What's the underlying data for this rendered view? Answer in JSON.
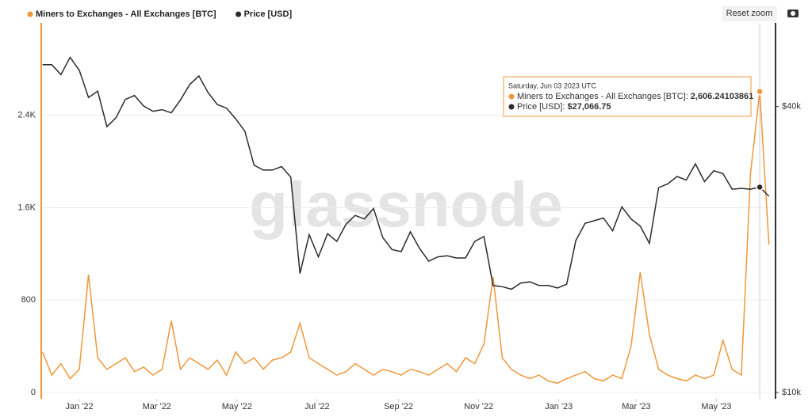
{
  "chart_data": {
    "type": "line",
    "watermark": "glassnode",
    "reset_button": "Reset zoom",
    "x": [
      "2021-12-04",
      "2021-12-11",
      "2021-12-18",
      "2021-12-25",
      "2022-01-01",
      "2022-01-08",
      "2022-01-15",
      "2022-01-22",
      "2022-01-29",
      "2022-02-05",
      "2022-02-12",
      "2022-02-19",
      "2022-02-26",
      "2022-03-05",
      "2022-03-12",
      "2022-03-19",
      "2022-03-26",
      "2022-04-02",
      "2022-04-09",
      "2022-04-16",
      "2022-04-23",
      "2022-04-30",
      "2022-05-07",
      "2022-05-14",
      "2022-05-21",
      "2022-05-28",
      "2022-06-04",
      "2022-06-11",
      "2022-06-18",
      "2022-06-25",
      "2022-07-02",
      "2022-07-09",
      "2022-07-16",
      "2022-07-23",
      "2022-07-30",
      "2022-08-06",
      "2022-08-13",
      "2022-08-20",
      "2022-08-27",
      "2022-09-03",
      "2022-09-10",
      "2022-09-17",
      "2022-09-24",
      "2022-10-01",
      "2022-10-08",
      "2022-10-15",
      "2022-10-22",
      "2022-10-29",
      "2022-11-05",
      "2022-11-12",
      "2022-11-19",
      "2022-11-26",
      "2022-12-03",
      "2022-12-10",
      "2022-12-17",
      "2022-12-24",
      "2022-12-31",
      "2023-01-07",
      "2023-01-14",
      "2023-01-21",
      "2023-01-28",
      "2023-02-04",
      "2023-02-11",
      "2023-02-18",
      "2023-02-25",
      "2023-03-04",
      "2023-03-11",
      "2023-03-18",
      "2023-03-25",
      "2023-04-01",
      "2023-04-08",
      "2023-04-15",
      "2023-04-22",
      "2023-04-29",
      "2023-05-06",
      "2023-05-13",
      "2023-05-20",
      "2023-05-27",
      "2023-06-03",
      "2023-06-10"
    ],
    "series": [
      {
        "name": "Miners to Exchanges - All Exchanges [BTC]",
        "color": "#f0973a",
        "axis": "y",
        "values": [
          350,
          150,
          250,
          120,
          200,
          1020,
          300,
          200,
          250,
          300,
          180,
          220,
          150,
          200,
          620,
          200,
          300,
          250,
          200,
          280,
          150,
          350,
          250,
          300,
          200,
          280,
          300,
          350,
          600,
          300,
          250,
          200,
          150,
          180,
          250,
          200,
          150,
          200,
          180,
          150,
          200,
          180,
          150,
          200,
          250,
          180,
          300,
          250,
          420,
          1000,
          300,
          200,
          150,
          120,
          150,
          100,
          80,
          120,
          150,
          180,
          120,
          100,
          150,
          120,
          400,
          1040,
          500,
          200,
          150,
          120,
          100,
          150,
          120,
          150,
          450,
          200,
          150,
          1900,
          2606.24103861,
          1280
        ]
      },
      {
        "name": "Price [USD]",
        "color": "#2b2b2b",
        "axis": "y2",
        "values": [
          49000,
          49000,
          46700,
          50800,
          47700,
          41800,
          43100,
          36300,
          37900,
          41400,
          42200,
          40100,
          39100,
          39400,
          38800,
          41300,
          44500,
          46400,
          42800,
          40400,
          39700,
          37700,
          35500,
          30100,
          29400,
          29400,
          29900,
          28400,
          17800,
          21500,
          19300,
          21600,
          20800,
          22600,
          23600,
          23200,
          24400,
          21200,
          20000,
          19800,
          21800,
          20100,
          18900,
          19300,
          19400,
          19200,
          19200,
          20800,
          21300,
          16800,
          16700,
          16500,
          17000,
          17100,
          16800,
          16800,
          16600,
          16900,
          20900,
          22700,
          23000,
          23300,
          21900,
          24600,
          23200,
          22400,
          20600,
          27000,
          27500,
          28500,
          28000,
          30300,
          27800,
          29300,
          28900,
          26800,
          26900,
          26800,
          27066.75,
          25900
        ]
      }
    ],
    "xlim": [
      "2021-12-03",
      "2023-06-15"
    ],
    "xticks": [
      {
        "value": "2022-01-01",
        "label": "Jan '22"
      },
      {
        "value": "2022-03-01",
        "label": "Mar '22"
      },
      {
        "value": "2022-05-01",
        "label": "May '22"
      },
      {
        "value": "2022-07-01",
        "label": "Jul '22"
      },
      {
        "value": "2022-09-01",
        "label": "Sep '22"
      },
      {
        "value": "2022-11-01",
        "label": "Nov '22"
      },
      {
        "value": "2023-01-01",
        "label": "Jan '23"
      },
      {
        "value": "2023-03-01",
        "label": "Mar '23"
      },
      {
        "value": "2023-05-01",
        "label": "May '23"
      }
    ],
    "ylim": [
      0,
      3200
    ],
    "yticks": [
      0,
      800,
      {
        "value": 1600,
        "label": "1.6K"
      },
      {
        "value": 2400,
        "label": "2.4K"
      }
    ],
    "y2lim": [
      10000,
      60000
    ],
    "y2ticks": [
      {
        "value": 10000,
        "label": "$10k"
      },
      {
        "value": 40000,
        "label": "$40k"
      }
    ],
    "y2log": true,
    "grid": true,
    "tooltip": {
      "title": "Saturday, Jun 03 2023 UTC",
      "index": 78,
      "labels": [
        "2,606.24103861",
        "$27,066.75"
      ]
    }
  }
}
